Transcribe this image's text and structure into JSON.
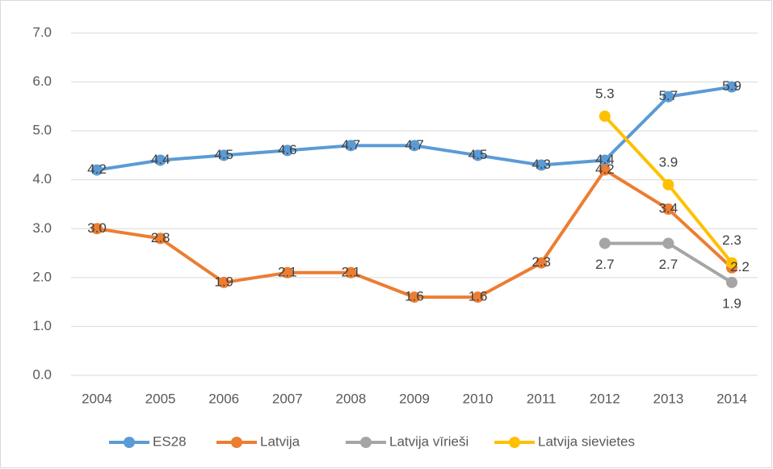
{
  "chart_data": {
    "type": "line",
    "categories": [
      "2004",
      "2005",
      "2006",
      "2007",
      "2008",
      "2009",
      "2010",
      "2011",
      "2012",
      "2013",
      "2014"
    ],
    "series": [
      {
        "name": "ES28",
        "color": "#5b9bd5",
        "values": [
          4.2,
          4.4,
          4.5,
          4.6,
          4.7,
          4.7,
          4.5,
          4.3,
          4.4,
          5.7,
          5.9
        ],
        "value_labels": [
          "4.2",
          "4.4",
          "4.5",
          "4.6",
          "4.7",
          "4.7",
          "4.5",
          "4.3",
          "4.4",
          "5.7",
          "5.9"
        ]
      },
      {
        "name": "Latvija",
        "color": "#ed7d31",
        "values": [
          3.0,
          2.8,
          1.9,
          2.1,
          2.1,
          1.6,
          1.6,
          2.3,
          4.2,
          3.4,
          2.2
        ],
        "value_labels": [
          "3.0",
          "2.8",
          "1.9",
          "2.1",
          "2.1",
          "1.6",
          "1.6",
          "2.3",
          "4.2",
          "3.4",
          "2.2"
        ]
      },
      {
        "name": "Latvija vīrieši",
        "color": "#a5a5a5",
        "values": [
          null,
          null,
          null,
          null,
          null,
          null,
          null,
          null,
          2.7,
          2.7,
          1.9
        ],
        "value_labels": [
          null,
          null,
          null,
          null,
          null,
          null,
          null,
          null,
          "2.7",
          "2.7",
          "1.9"
        ]
      },
      {
        "name": "Latvija sievietes",
        "color": "#ffc000",
        "values": [
          null,
          null,
          null,
          null,
          null,
          null,
          null,
          null,
          5.3,
          3.9,
          2.3
        ],
        "value_labels": [
          null,
          null,
          null,
          null,
          null,
          null,
          null,
          null,
          "5.3",
          "3.9",
          "2.3"
        ]
      }
    ],
    "ylim": [
      0,
      7
    ],
    "yticks": [
      {
        "value": 0,
        "label": "0.0"
      },
      {
        "value": 1,
        "label": "1.0"
      },
      {
        "value": 2,
        "label": "2.0"
      },
      {
        "value": 3,
        "label": "3.0"
      },
      {
        "value": 4,
        "label": "4.0"
      },
      {
        "value": 5,
        "label": "5.0"
      },
      {
        "value": 6,
        "label": "6.0"
      },
      {
        "value": 7,
        "label": "7.0"
      }
    ],
    "grid": true,
    "legend": "bottom"
  }
}
